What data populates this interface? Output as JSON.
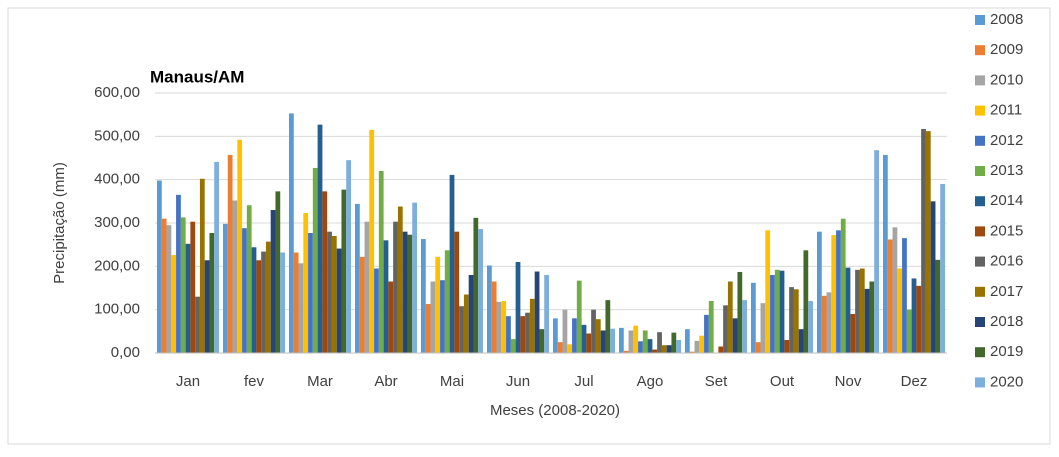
{
  "chart_data": {
    "type": "bar",
    "title": "Manaus/AM",
    "xlabel": "Meses (2008-2020)",
    "ylabel": "Precipitação (mm)",
    "categories": [
      "Jan",
      "fev",
      "Mar",
      "Abr",
      "Mai",
      "Jun",
      "Jul",
      "Ago",
      "Set",
      "Out",
      "Nov",
      "Dez"
    ],
    "series": [
      {
        "name": "2008",
        "color": "#5B9BD5",
        "values": [
          398,
          298,
          553,
          344,
          263,
          202,
          80,
          58,
          55,
          162,
          280,
          457
        ]
      },
      {
        "name": "2009",
        "color": "#ED7D31",
        "values": [
          310,
          457,
          232,
          222,
          113,
          165,
          25,
          5,
          3,
          25,
          132,
          262
        ]
      },
      {
        "name": "2010",
        "color": "#A5A5A5",
        "values": [
          295,
          352,
          207,
          303,
          165,
          118,
          100,
          52,
          28,
          115,
          140,
          290
        ]
      },
      {
        "name": "2011",
        "color": "#FFC000",
        "values": [
          226,
          492,
          323,
          515,
          222,
          120,
          20,
          63,
          40,
          283,
          272,
          195
        ]
      },
      {
        "name": "2012",
        "color": "#4472C4",
        "values": [
          365,
          288,
          277,
          195,
          168,
          85,
          80,
          27,
          88,
          180,
          283,
          265
        ]
      },
      {
        "name": "2013",
        "color": "#70AD47",
        "values": [
          313,
          341,
          427,
          420,
          237,
          32,
          167,
          52,
          120,
          192,
          310,
          100
        ]
      },
      {
        "name": "2014",
        "color": "#255E91",
        "values": [
          252,
          244,
          527,
          260,
          411,
          210,
          65,
          32,
          0,
          190,
          197,
          172
        ]
      },
      {
        "name": "2015",
        "color": "#9E480E",
        "values": [
          303,
          214,
          373,
          165,
          280,
          85,
          45,
          8,
          15,
          30,
          90,
          155
        ]
      },
      {
        "name": "2016",
        "color": "#636363",
        "values": [
          130,
          234,
          280,
          303,
          108,
          93,
          100,
          48,
          110,
          152,
          192,
          517
        ]
      },
      {
        "name": "2017",
        "color": "#997300",
        "values": [
          402,
          257,
          270,
          338,
          135,
          125,
          78,
          18,
          165,
          147,
          195,
          512
        ]
      },
      {
        "name": "2018",
        "color": "#264478",
        "values": [
          214,
          330,
          241,
          280,
          180,
          188,
          52,
          18,
          80,
          55,
          148,
          350
        ]
      },
      {
        "name": "2019",
        "color": "#43682B",
        "values": [
          277,
          373,
          377,
          273,
          312,
          55,
          122,
          47,
          187,
          237,
          165,
          215
        ]
      },
      {
        "name": "2020",
        "color": "#7CAFDD",
        "values": [
          441,
          232,
          445,
          347,
          286,
          180,
          56,
          30,
          122,
          120,
          468,
          390
        ]
      }
    ],
    "ylim": [
      0,
      600
    ],
    "yticks": [
      {
        "value": 0,
        "label": "0,00"
      },
      {
        "value": 100,
        "label": "100,00"
      },
      {
        "value": 200,
        "label": "200,00"
      },
      {
        "value": 300,
        "label": "300,00"
      },
      {
        "value": 400,
        "label": "400,00"
      },
      {
        "value": 500,
        "label": "500,00"
      },
      {
        "value": 600,
        "label": "600,00"
      }
    ],
    "grid": true,
    "legend": "right"
  }
}
